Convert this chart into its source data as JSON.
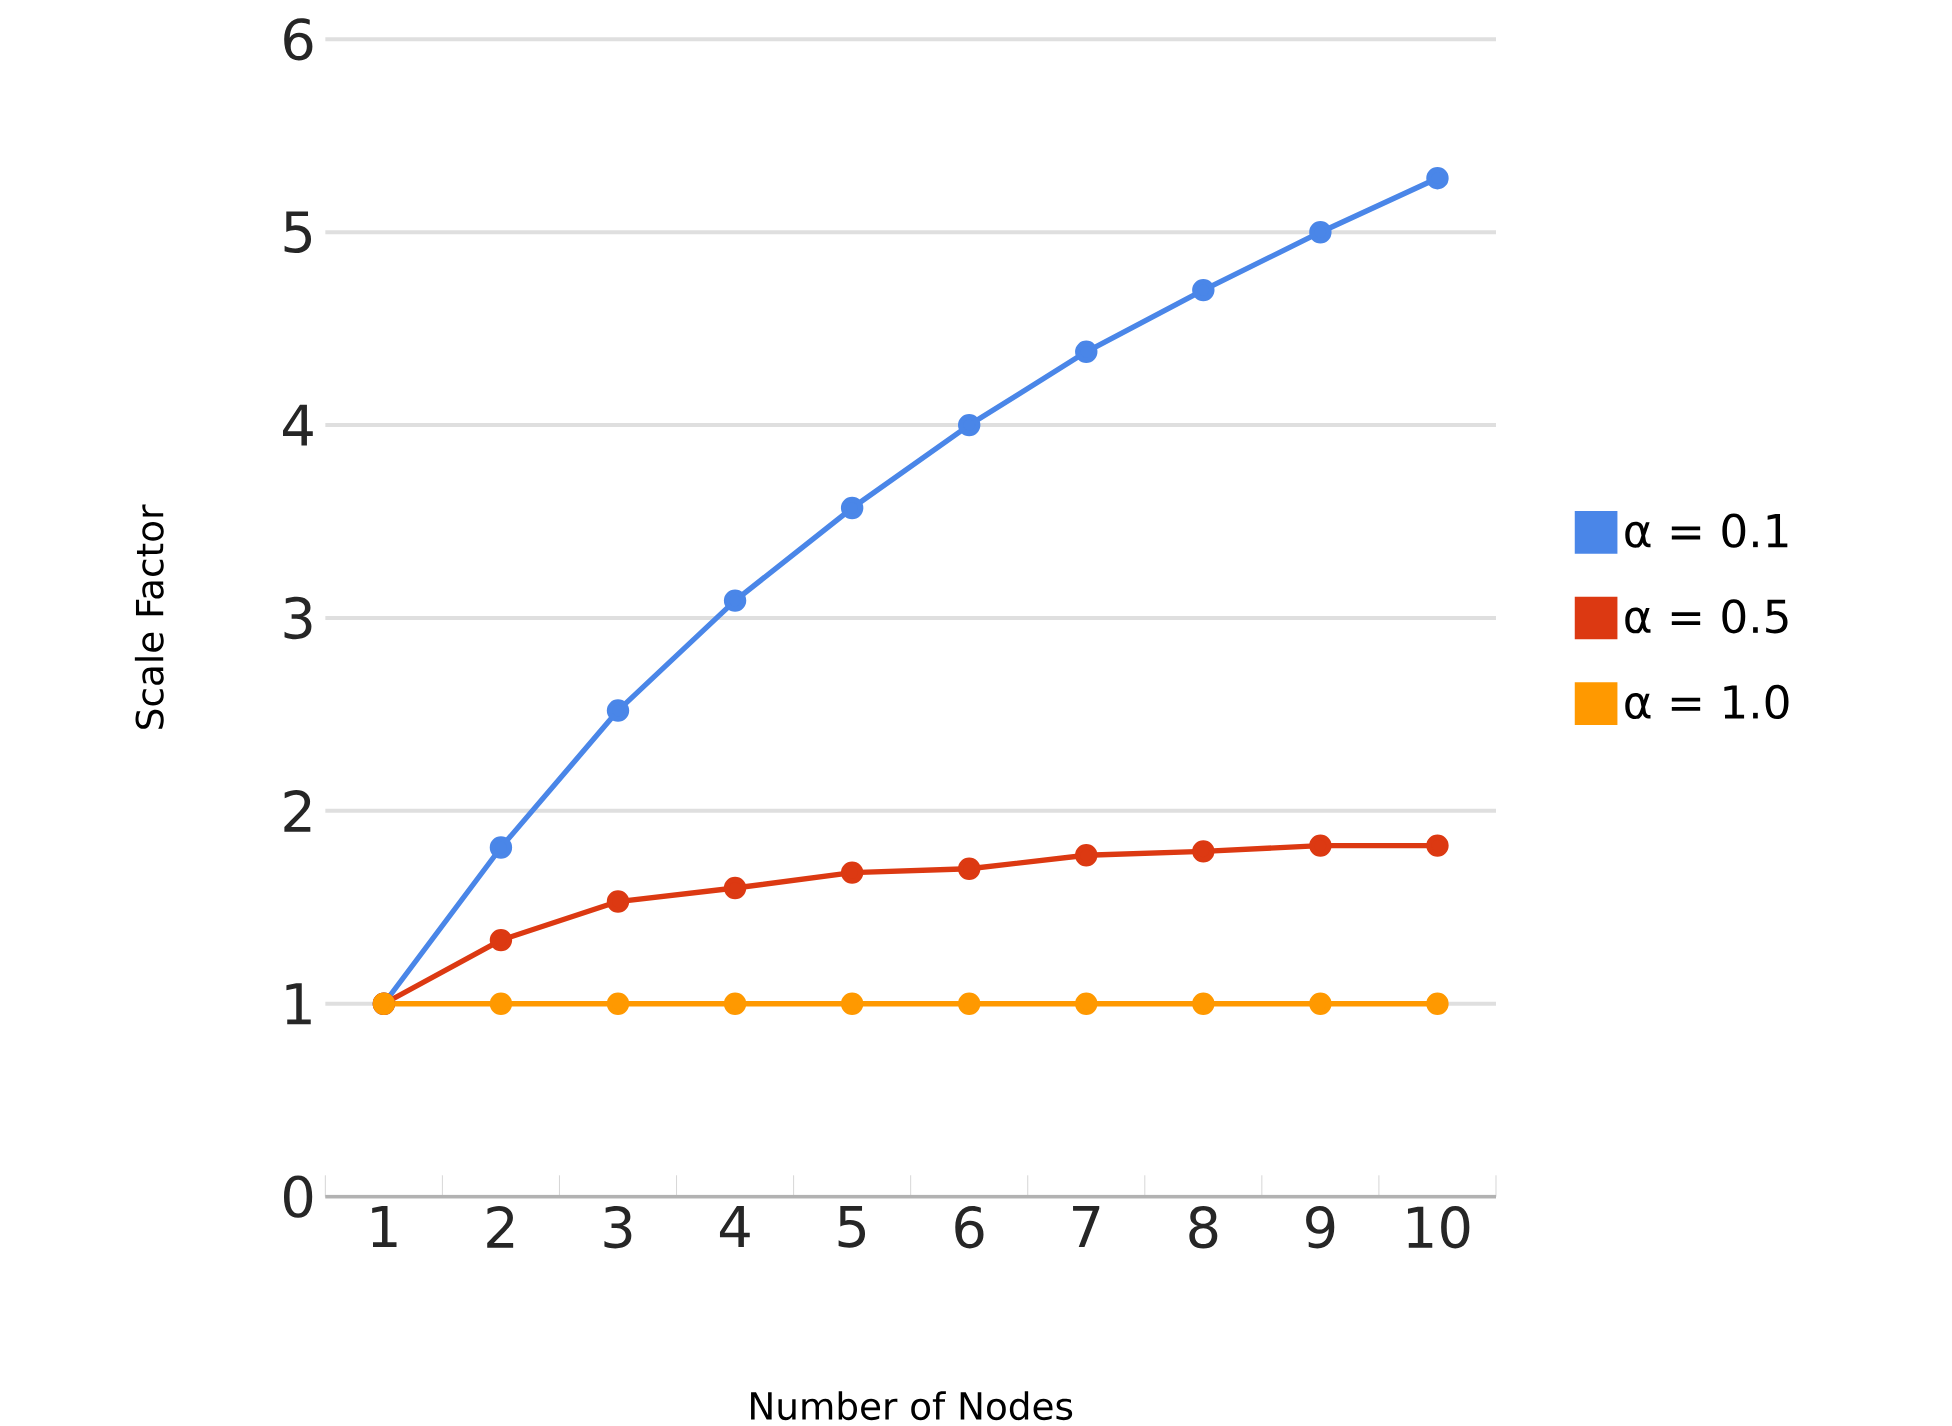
{
  "chart_data": {
    "type": "line",
    "xlabel": "Number of Nodes",
    "ylabel": "Scale Factor",
    "categories": [
      "1",
      "2",
      "3",
      "4",
      "5",
      "6",
      "7",
      "8",
      "9",
      "10"
    ],
    "series": [
      {
        "name": "α = 0.1",
        "color": "#4a86e8",
        "values": [
          1.0,
          1.81,
          2.52,
          3.09,
          3.57,
          4.0,
          4.38,
          4.7,
          5.0,
          5.28
        ]
      },
      {
        "name": "α = 0.5",
        "color": "#dc3912",
        "values": [
          1.0,
          1.33,
          1.53,
          1.6,
          1.68,
          1.7,
          1.77,
          1.79,
          1.82,
          1.82
        ]
      },
      {
        "name": "α = 1.0",
        "color": "#ff9900",
        "values": [
          1.0,
          1.0,
          1.0,
          1.0,
          1.0,
          1.0,
          1.0,
          1.0,
          1.0,
          1.0
        ]
      }
    ],
    "ylim": [
      0,
      6
    ],
    "yticks": [
      0,
      1,
      2,
      3,
      4,
      5,
      6
    ],
    "grid": "y",
    "legend": "right",
    "marker": "circle",
    "line_style": "solid"
  }
}
